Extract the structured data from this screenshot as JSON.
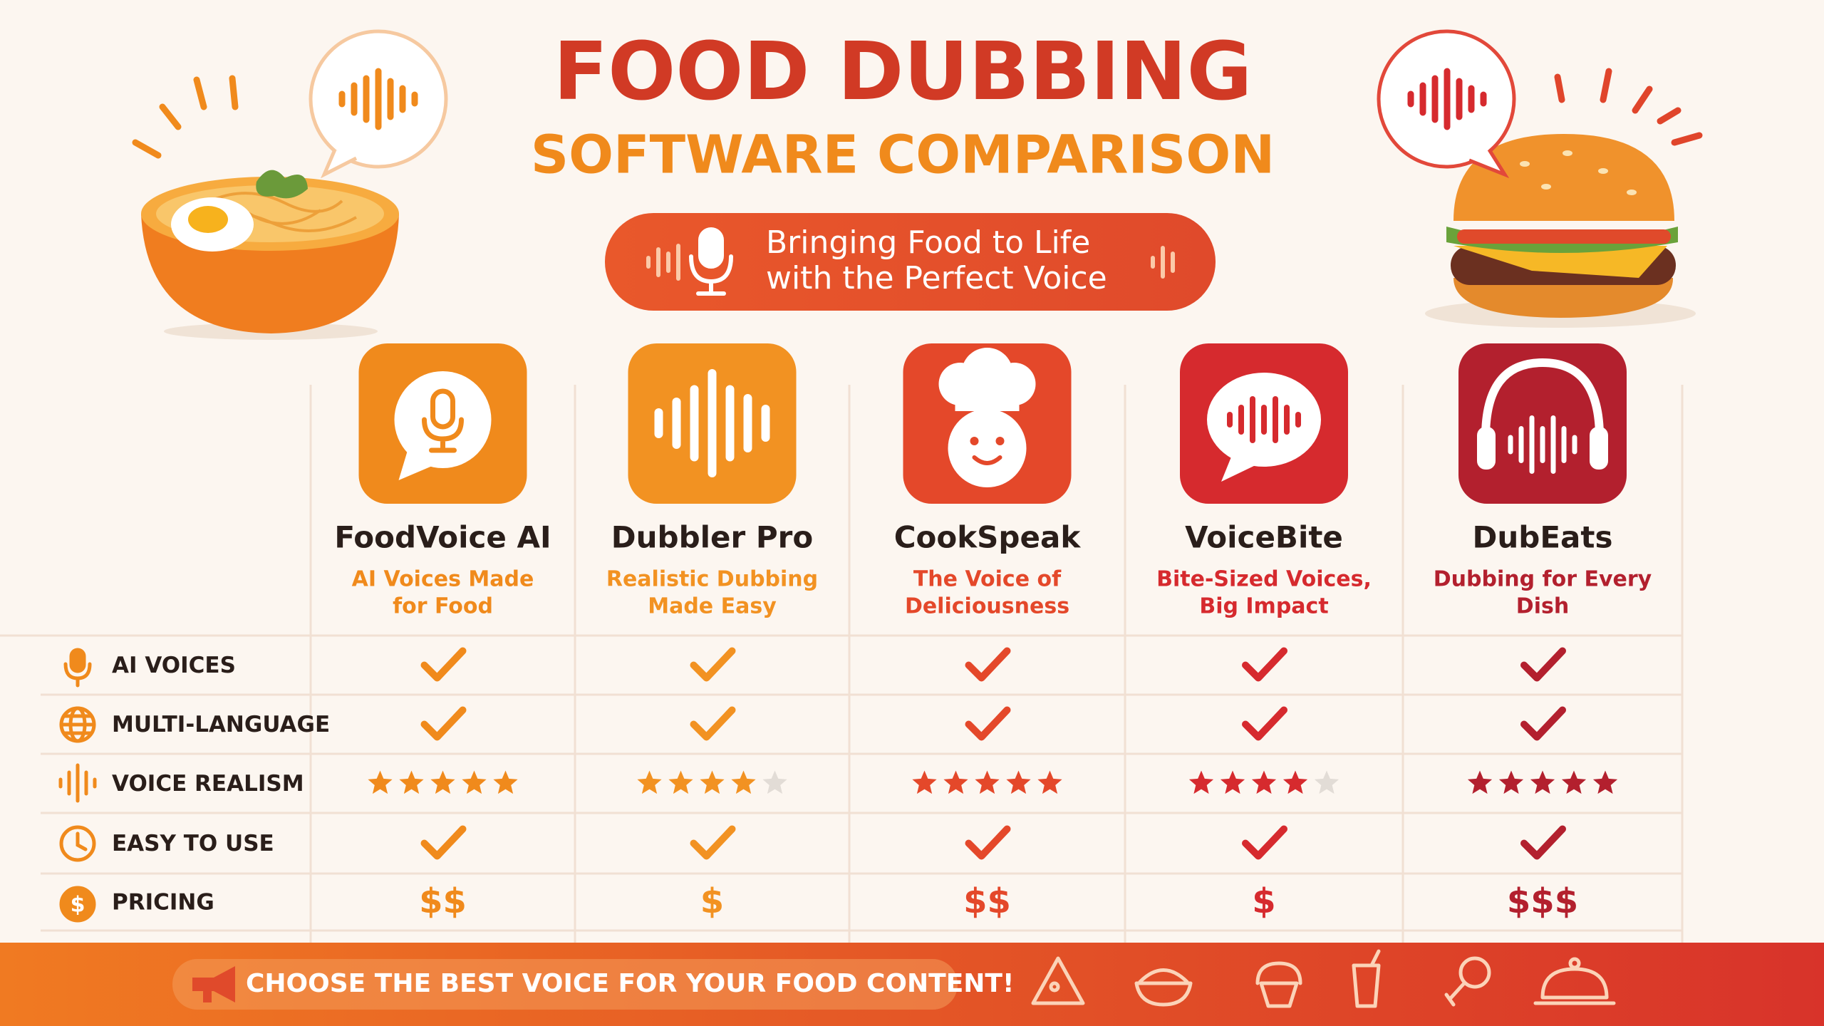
{
  "header": {
    "title": "FOOD DUBBING",
    "subtitle": "SOFTWARE COMPARISON",
    "tagline": [
      "Bringing Food to Life",
      "with the Perfect Voice"
    ]
  },
  "products": [
    {
      "name": "FoodVoice AI",
      "tagline": [
        "AI Voices Made",
        "for Food"
      ],
      "color": "#f08a1c"
    },
    {
      "name": "Dubbler Pro",
      "tagline": [
        "Realistic Dubbing",
        "Made Easy"
      ],
      "color": "#f29222"
    },
    {
      "name": "CookSpeak",
      "tagline": [
        "The Voice of",
        "Deliciousness"
      ],
      "color": "#e4482a"
    },
    {
      "name": "VoiceBite",
      "tagline": [
        "Bite-Sized Voices,",
        "Big Impact"
      ],
      "color": "#d62a2e"
    },
    {
      "name": "DubEats",
      "tagline": [
        "Dubbing for Every",
        "Dish"
      ],
      "color": "#b3202e"
    }
  ],
  "features": [
    {
      "label": "AI VOICES",
      "values": [
        true,
        true,
        true,
        true,
        true
      ]
    },
    {
      "label": "MULTI-LANGUAGE",
      "values": [
        true,
        true,
        true,
        true,
        true
      ]
    },
    {
      "label": "VOICE REALISM",
      "values": [
        5,
        4,
        5,
        4,
        5
      ],
      "max": 5
    },
    {
      "label": "EASY TO USE",
      "values": [
        true,
        true,
        true,
        true,
        true
      ]
    },
    {
      "label": "PRICING",
      "values": [
        "$$",
        "$",
        "$$",
        "$",
        "$$$"
      ]
    }
  ],
  "footer": {
    "text": "CHOOSE THE BEST VOICE FOR YOUR FOOD CONTENT!"
  }
}
